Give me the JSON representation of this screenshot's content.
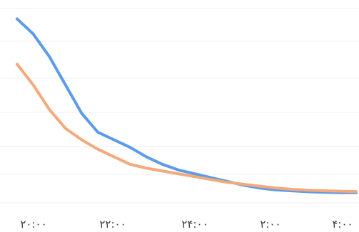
{
  "chart_data": {
    "type": "line",
    "x": [
      "۲۰:۰۰",
      "۲۲:۰۰",
      "۲۴:۰۰",
      "۲:۰۰",
      "۴:۰۰"
    ],
    "x_values": [
      0,
      0.2,
      0.4,
      0.6,
      0.8,
      1.0,
      1.2,
      1.4,
      1.6,
      1.8,
      2.0,
      2.2,
      2.4,
      2.6,
      2.8,
      3.0,
      3.2,
      3.4,
      3.6,
      3.8,
      4.0,
      4.2
    ],
    "series": [
      {
        "color": "#5b9bea",
        "values": [
          100,
          92,
          80,
          65,
          50,
          40,
          36,
          32,
          27,
          23,
          20,
          18,
          16,
          14,
          12,
          10.5,
          9.5,
          9,
          8.5,
          8.2,
          8,
          8
        ]
      },
      {
        "color": "#f3a97b",
        "values": [
          76,
          65,
          52,
          42,
          36,
          31,
          27,
          23,
          21,
          19.5,
          18,
          16.5,
          15,
          13.5,
          12.5,
          11.5,
          10.5,
          9.8,
          9.3,
          9.0,
          8.8,
          8.6
        ]
      }
    ],
    "xlabel": "",
    "ylabel": "",
    "ylim": [
      0,
      110
    ],
    "xlim": [
      0,
      4.2
    ],
    "grid": true,
    "legend": "none"
  }
}
